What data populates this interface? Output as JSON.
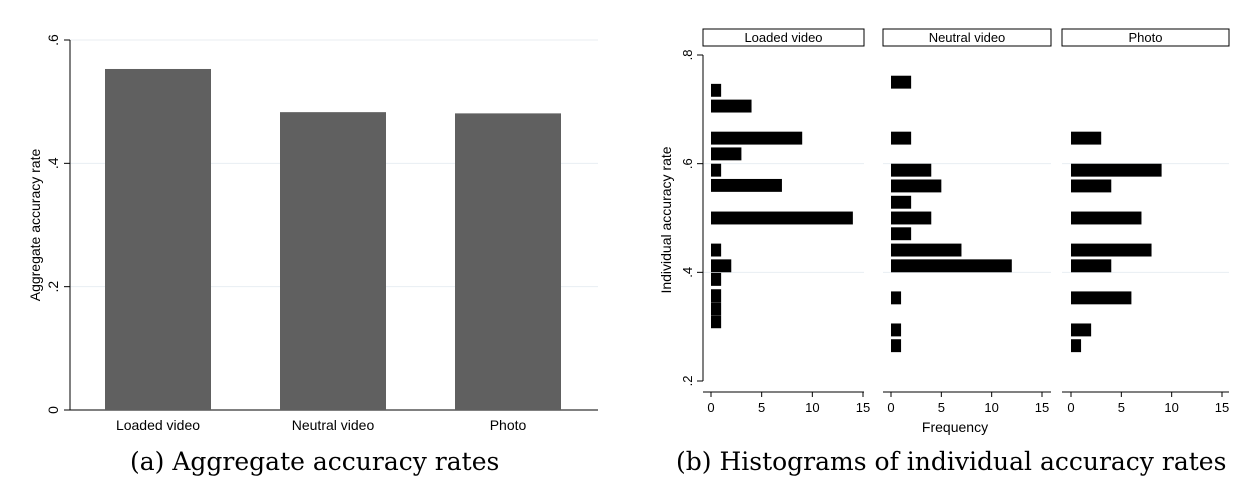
{
  "captions": {
    "a": "(a) Aggregate accuracy rates",
    "b": "(b) Histograms of individual accuracy rates"
  },
  "chart_data": [
    {
      "type": "bar",
      "ylabel": "Aggregate accuracy rate",
      "categories": [
        "Loaded video",
        "Neutral video",
        "Photo"
      ],
      "values": [
        0.553,
        0.483,
        0.481
      ],
      "ylim": [
        0,
        0.6
      ],
      "yticks": [
        0,
        0.2,
        0.4,
        0.6
      ],
      "ytick_labels": [
        "0",
        ".2",
        ".4",
        ".6"
      ],
      "grid": true,
      "bar_color": "#606060"
    },
    {
      "type": "bar",
      "orientation": "horizontal",
      "ylabel": "Individual accuracy rate",
      "xlabel": "Frequency",
      "ylim": [
        0.2,
        0.8
      ],
      "yticks": [
        0.2,
        0.4,
        0.6,
        0.8
      ],
      "ytick_labels": [
        ".2",
        ".4",
        ".6",
        ".8"
      ],
      "xlim": [
        0,
        15
      ],
      "xticks": [
        0,
        5,
        10,
        15
      ],
      "xtick_labels": [
        "0",
        "5",
        "10",
        "15"
      ],
      "bin_width": 0.025,
      "grid": true,
      "bar_color": "#000000",
      "panels": [
        {
          "name": "Loaded video",
          "bins": [
            {
              "y": 0.309,
              "count": 1
            },
            {
              "y": 0.333,
              "count": 1
            },
            {
              "y": 0.357,
              "count": 1
            },
            {
              "y": 0.387,
              "count": 1
            },
            {
              "y": 0.412,
              "count": 2
            },
            {
              "y": 0.441,
              "count": 1
            },
            {
              "y": 0.5,
              "count": 14
            },
            {
              "y": 0.56,
              "count": 7
            },
            {
              "y": 0.588,
              "count": 1
            },
            {
              "y": 0.618,
              "count": 3
            },
            {
              "y": 0.647,
              "count": 9
            },
            {
              "y": 0.706,
              "count": 4
            },
            {
              "y": 0.735,
              "count": 1
            }
          ]
        },
        {
          "name": "Neutral video",
          "bins": [
            {
              "y": 0.265,
              "count": 1
            },
            {
              "y": 0.294,
              "count": 1
            },
            {
              "y": 0.353,
              "count": 1
            },
            {
              "y": 0.412,
              "count": 12
            },
            {
              "y": 0.441,
              "count": 7
            },
            {
              "y": 0.471,
              "count": 2
            },
            {
              "y": 0.5,
              "count": 4
            },
            {
              "y": 0.529,
              "count": 2
            },
            {
              "y": 0.559,
              "count": 5
            },
            {
              "y": 0.588,
              "count": 4
            },
            {
              "y": 0.647,
              "count": 2
            },
            {
              "y": 0.75,
              "count": 2
            }
          ]
        },
        {
          "name": "Photo",
          "bins": [
            {
              "y": 0.265,
              "count": 1
            },
            {
              "y": 0.294,
              "count": 2
            },
            {
              "y": 0.353,
              "count": 6
            },
            {
              "y": 0.412,
              "count": 4
            },
            {
              "y": 0.441,
              "count": 8
            },
            {
              "y": 0.5,
              "count": 7
            },
            {
              "y": 0.559,
              "count": 4
            },
            {
              "y": 0.588,
              "count": 9
            },
            {
              "y": 0.647,
              "count": 3
            }
          ]
        }
      ]
    }
  ]
}
